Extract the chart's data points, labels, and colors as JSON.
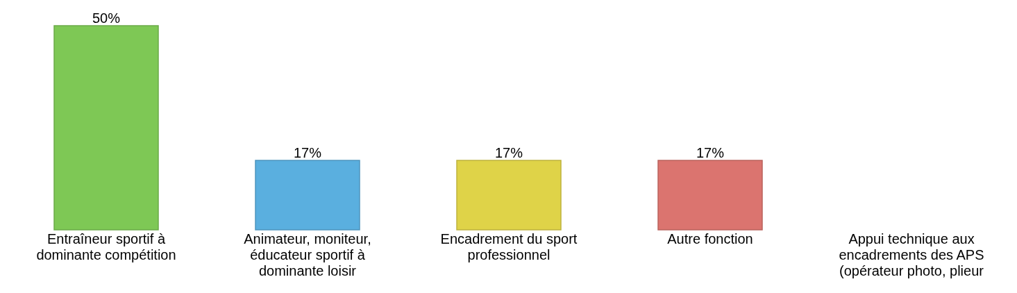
{
  "chart_data": {
    "type": "bar",
    "categories": [
      "Entraîneur sportif à dominante compétition",
      "Animateur, moniteur, éducateur sportif à dominante loisir",
      "Encadrement du sport professionnel",
      "Autre fonction",
      "Appui technique aux encadrements des APS (opérateur photo, plieur"
    ],
    "values": [
      50,
      17,
      17,
      17,
      null
    ],
    "colors": [
      "#7ec855",
      "#5aafdf",
      "#dfd348",
      "#db746f",
      "#999999"
    ],
    "value_labels": [
      "50%",
      "17%",
      "17%",
      "17%",
      null
    ],
    "grid": false,
    "legend": false
  }
}
